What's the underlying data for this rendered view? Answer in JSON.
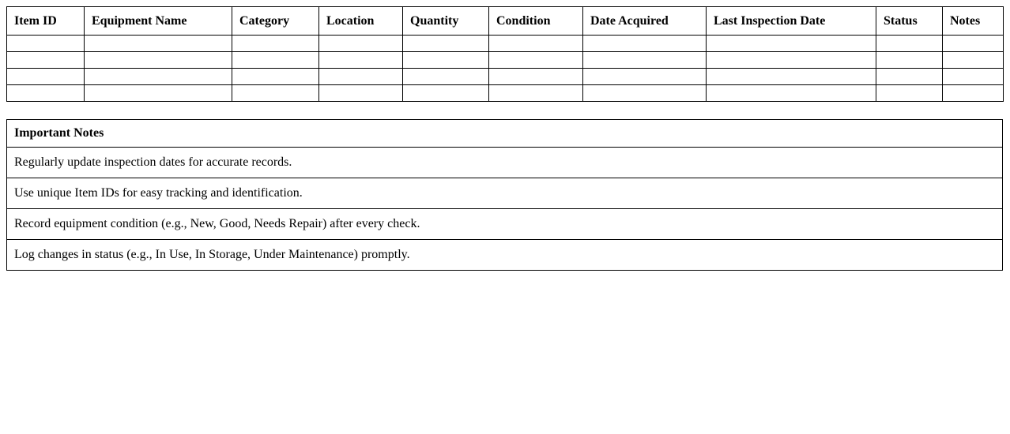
{
  "inventory_table": {
    "columns": [
      "Item ID",
      "Equipment Name",
      "Category",
      "Location",
      "Quantity",
      "Condition",
      "Date Acquired",
      "Last Inspection Date",
      "Status",
      "Notes"
    ],
    "rows": [
      [
        "",
        "",
        "",
        "",
        "",
        "",
        "",
        "",
        "",
        ""
      ],
      [
        "",
        "",
        "",
        "",
        "",
        "",
        "",
        "",
        "",
        ""
      ],
      [
        "",
        "",
        "",
        "",
        "",
        "",
        "",
        "",
        "",
        ""
      ],
      [
        "",
        "",
        "",
        "",
        "",
        "",
        "",
        "",
        "",
        ""
      ]
    ]
  },
  "notes_table": {
    "title": "Important Notes",
    "notes": [
      "Regularly update inspection dates for accurate records.",
      "Use unique Item IDs for easy tracking and identification.",
      "Record equipment condition (e.g., New, Good, Needs Repair) after every check.",
      "Log changes in status (e.g., In Use, In Storage, Under Maintenance) promptly."
    ]
  },
  "colors": {
    "border": "#000000",
    "background": "#ffffff",
    "text": "#000000"
  }
}
